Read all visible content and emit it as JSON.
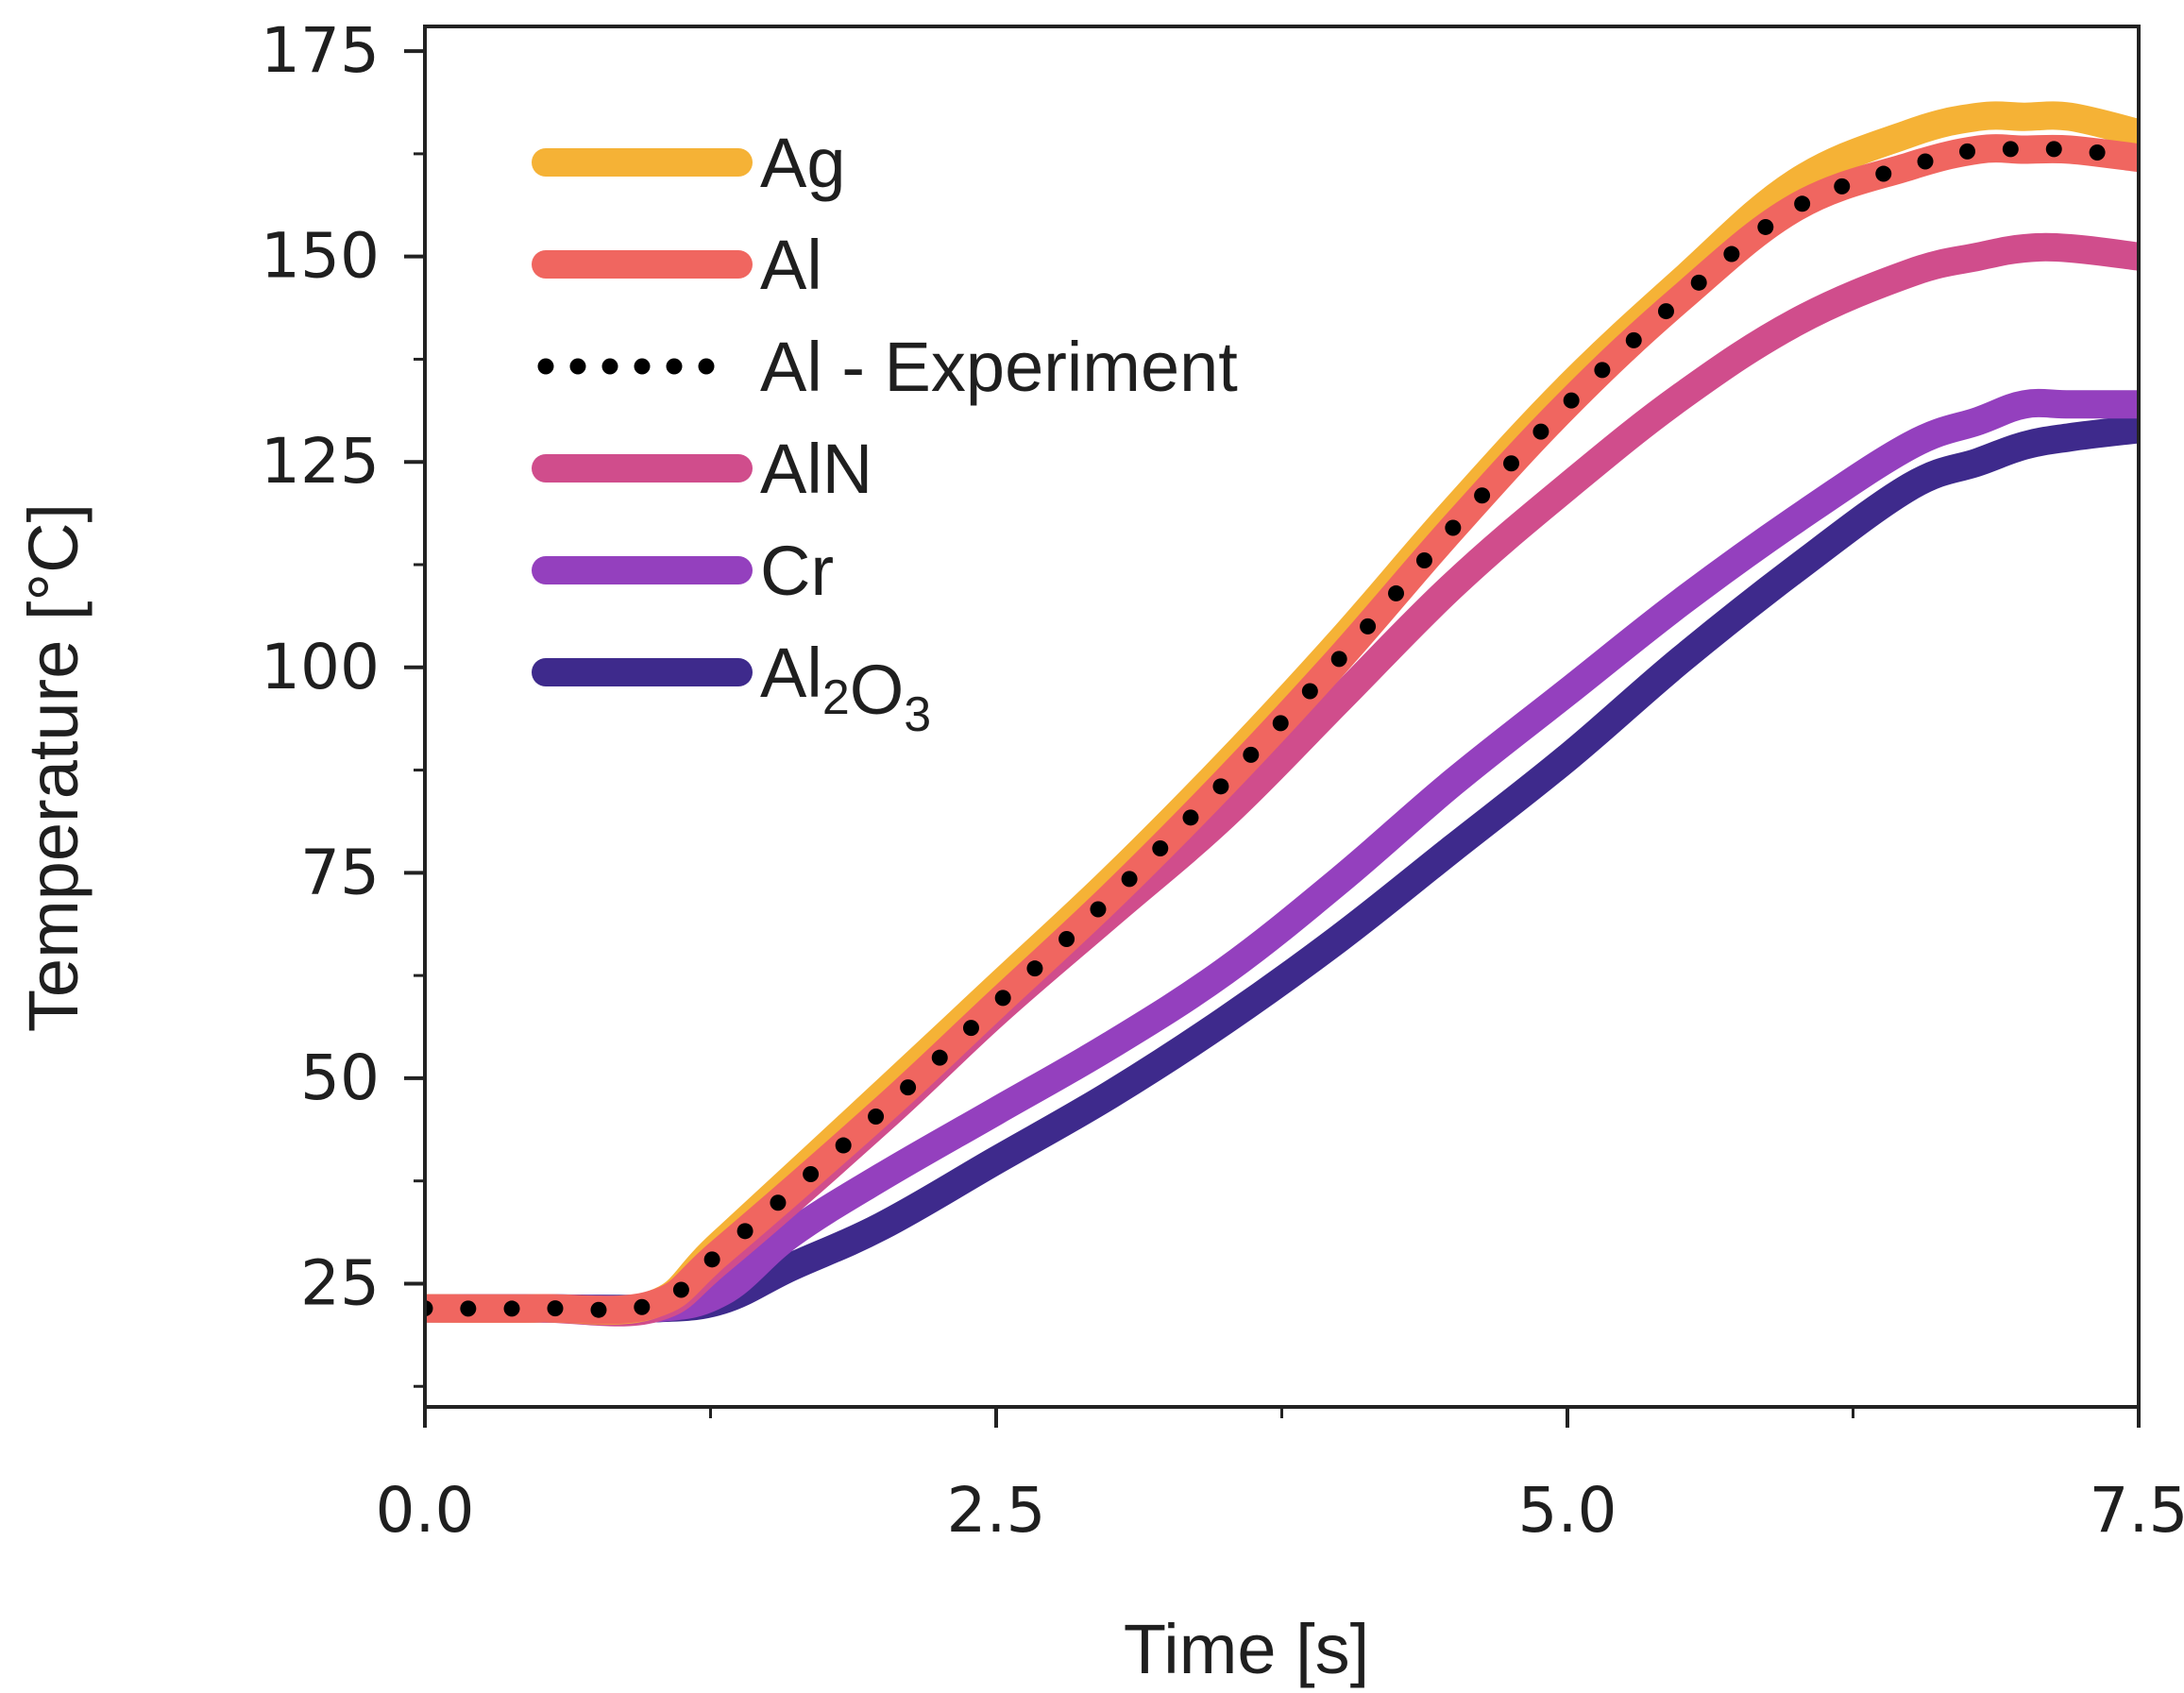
{
  "chart_data": {
    "type": "line",
    "title": "",
    "xlabel": "Time [s]",
    "ylabel": "Temperature [°C]",
    "xlim": [
      0,
      7.5
    ],
    "ylim": [
      10,
      178
    ],
    "xticks": [
      0.0,
      2.5,
      5.0,
      7.5
    ],
    "xtick_labels": [
      "0.0",
      "2.5",
      "5.0",
      "7.5"
    ],
    "yticks": [
      25,
      50,
      75,
      100,
      125,
      150,
      175
    ],
    "ytick_labels": [
      "25",
      "50",
      "75",
      "100",
      "125",
      "150",
      "175"
    ],
    "grid": false,
    "legend_position": "top-left",
    "series": [
      {
        "name": "Ag",
        "style": "solid",
        "color": "#F5B236",
        "x": [
          0,
          0.5,
          1.0,
          1.3,
          2.0,
          2.5,
          3.0,
          3.5,
          4.0,
          4.5,
          5.0,
          5.5,
          6.0,
          6.5,
          6.8,
          7.0,
          7.2,
          7.5
        ],
        "y": [
          22,
          22,
          22.5,
          30,
          48,
          61,
          74,
          88,
          103,
          119,
          134,
          147,
          159,
          165,
          167,
          167,
          167,
          165
        ]
      },
      {
        "name": "Al",
        "style": "solid",
        "color": "#F06660",
        "x": [
          0,
          0.5,
          1.0,
          1.3,
          2.0,
          2.5,
          3.0,
          3.5,
          4.0,
          4.5,
          5.0,
          5.5,
          6.0,
          6.5,
          6.8,
          7.0,
          7.2,
          7.5
        ],
        "y": [
          22,
          22,
          22.5,
          29,
          46,
          59,
          72,
          86,
          101,
          117,
          132,
          145,
          156,
          161,
          163,
          163,
          163,
          162
        ]
      },
      {
        "name": "Al - Experiment",
        "style": "dotted",
        "color": "#000000",
        "x": [
          0,
          0.5,
          1.0,
          1.3,
          2.0,
          2.5,
          3.0,
          3.5,
          4.0,
          4.5,
          5.0,
          5.5,
          6.0,
          6.5,
          6.8,
          7.0,
          7.2,
          7.5
        ],
        "y": [
          22,
          22,
          22.5,
          29,
          46,
          59,
          72,
          86,
          101,
          117,
          132,
          145,
          156,
          161,
          163,
          163,
          163,
          162
        ]
      },
      {
        "name": "AlN",
        "style": "solid",
        "color": "#D04D8C",
        "x": [
          0,
          0.5,
          1.0,
          1.3,
          2.0,
          2.5,
          3.0,
          3.5,
          4.0,
          4.5,
          5.0,
          5.5,
          6.0,
          6.5,
          6.8,
          7.0,
          7.2,
          7.5
        ],
        "y": [
          22,
          22,
          22,
          28,
          45,
          58,
          70,
          82,
          96,
          110,
          122,
          133,
          142,
          148,
          150,
          151,
          151,
          150
        ]
      },
      {
        "name": "Cr",
        "style": "solid",
        "color": "#9440BE",
        "x": [
          0,
          0.5,
          1.0,
          1.3,
          1.6,
          2.0,
          2.5,
          3.0,
          3.5,
          4.0,
          4.5,
          5.0,
          5.5,
          6.0,
          6.5,
          6.8,
          7.0,
          7.2,
          7.5
        ],
        "y": [
          22,
          22,
          22,
          24,
          31,
          38,
          46,
          54,
          63,
          74,
          86,
          97,
          108,
          118,
          127,
          130,
          132,
          132,
          132
        ]
      },
      {
        "name": "Al₂O₃",
        "style": "solid",
        "color": "#3E2A8C",
        "x": [
          0,
          0.5,
          1.0,
          1.3,
          1.6,
          2.0,
          2.5,
          3.0,
          3.5,
          4.0,
          4.5,
          5.0,
          5.5,
          6.0,
          6.5,
          6.8,
          7.0,
          7.2,
          7.5
        ],
        "y": [
          22,
          22,
          22,
          23,
          27,
          32,
          40,
          48,
          57,
          67,
          78,
          89,
          101,
          112,
          122,
          125,
          127,
          128,
          129
        ]
      }
    ]
  }
}
